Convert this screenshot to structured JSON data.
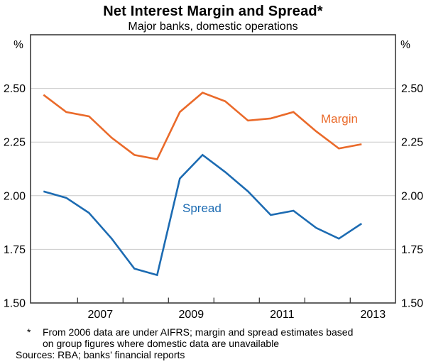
{
  "chart": {
    "title": "Net Interest Margin and Spread*",
    "subtitle": "Major banks, domestic operations",
    "unit_left": "%",
    "unit_right": "%"
  },
  "chart_data": {
    "type": "line",
    "title": "Net Interest Margin and Spread*",
    "subtitle": "Major banks, domestic operations",
    "ylabel": "%",
    "ylim": [
      1.5,
      2.75
    ],
    "grid": true,
    "y_ticks": [
      {
        "value": 2.5,
        "label": "2.50"
      },
      {
        "value": 2.25,
        "label": "2.25"
      },
      {
        "value": 2.0,
        "label": "2.00"
      },
      {
        "value": 1.75,
        "label": "1.75"
      },
      {
        "value": 1.5,
        "label": "1.50"
      }
    ],
    "x_tick_years": [
      2007,
      2008,
      2009,
      2010,
      2011,
      2012,
      2013
    ],
    "x_labels": [
      "2007",
      "2009",
      "2011",
      "2013"
    ],
    "categories": [
      "2006 H1",
      "2006 H2",
      "2007 H1",
      "2007 H2",
      "2008 H1",
      "2008 H2",
      "2009 H1",
      "2009 H2",
      "2010 H1",
      "2010 H2",
      "2011 H1",
      "2011 H2",
      "2012 H1",
      "2012 H2",
      "2013 H1"
    ],
    "series": [
      {
        "name": "Margin",
        "color": "#EA6A2A",
        "values": [
          2.47,
          2.39,
          2.37,
          2.27,
          2.19,
          2.17,
          2.39,
          2.48,
          2.44,
          2.35,
          2.36,
          2.39,
          2.3,
          2.22,
          2.24
        ]
      },
      {
        "name": "Spread",
        "color": "#1C6BB2",
        "values": [
          2.02,
          1.99,
          1.92,
          1.8,
          1.66,
          1.63,
          2.08,
          2.19,
          2.11,
          2.02,
          1.91,
          1.93,
          1.85,
          1.8,
          1.87
        ]
      }
    ],
    "colors": {
      "frame": "#3C3C3C",
      "grid": "#C9C9C9",
      "text": "#000000"
    },
    "legend_position": "inline-labels"
  },
  "footnote": {
    "marker": "*",
    "lines": [
      "From 2006 data are under AIFRS; margin and spread estimates based",
      "on group figures where domestic data are unavailable"
    ],
    "sources": "Sources: RBA; banks’ financial reports"
  }
}
